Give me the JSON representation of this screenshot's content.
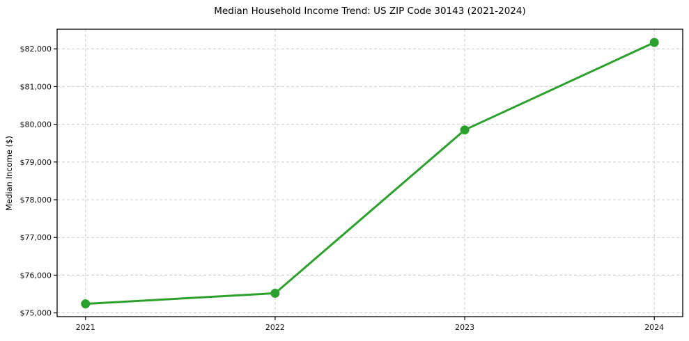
{
  "page": {
    "background": "#ffffff"
  },
  "chart_data": {
    "type": "line",
    "title": "Median Household Income Trend: US ZIP Code 30143 (2021-2024)",
    "xlabel": "",
    "ylabel": "Median Income ($)",
    "x": [
      2021,
      2022,
      2023,
      2024
    ],
    "x_tick_labels": [
      "2021",
      "2022",
      "2023",
      "2024"
    ],
    "series": [
      {
        "name": "median-household-income",
        "values": [
          75240,
          75520,
          79850,
          82170
        ],
        "color": "#2ca02c",
        "marker": "circle",
        "line_width": 3
      }
    ],
    "y_ticks": [
      75000,
      76000,
      77000,
      78000,
      79000,
      80000,
      81000,
      82000
    ],
    "y_tick_labels": [
      "$75,000",
      "$76,000",
      "$77,000",
      "$78,000",
      "$79,000",
      "$80,000",
      "$81,000",
      "$82,000"
    ],
    "ylim": [
      74900,
      82520
    ],
    "xlim": [
      2020.85,
      2024.15
    ],
    "grid": true,
    "grid_style": "dashed",
    "grid_color": "#cccccc",
    "axis_color": "#000000",
    "tick_label_color": "#111111",
    "legend": "none"
  }
}
